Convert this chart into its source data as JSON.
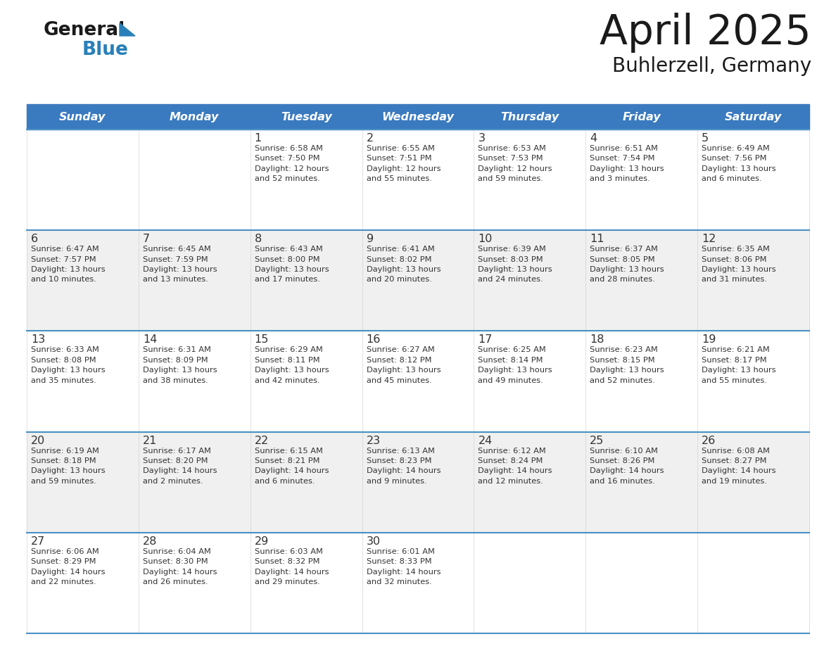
{
  "title": "April 2025",
  "subtitle": "Buhlerzell, Germany",
  "header_bg": "#3a7abf",
  "header_text_color": "#ffffff",
  "cell_bg_white": "#ffffff",
  "cell_bg_gray": "#f0f0f0",
  "row_line_color": "#4a90c4",
  "text_color": "#333333",
  "day_names": [
    "Sunday",
    "Monday",
    "Tuesday",
    "Wednesday",
    "Thursday",
    "Friday",
    "Saturday"
  ],
  "weeks": [
    [
      {
        "day": "",
        "info": ""
      },
      {
        "day": "",
        "info": ""
      },
      {
        "day": "1",
        "info": "Sunrise: 6:58 AM\nSunset: 7:50 PM\nDaylight: 12 hours\nand 52 minutes."
      },
      {
        "day": "2",
        "info": "Sunrise: 6:55 AM\nSunset: 7:51 PM\nDaylight: 12 hours\nand 55 minutes."
      },
      {
        "day": "3",
        "info": "Sunrise: 6:53 AM\nSunset: 7:53 PM\nDaylight: 12 hours\nand 59 minutes."
      },
      {
        "day": "4",
        "info": "Sunrise: 6:51 AM\nSunset: 7:54 PM\nDaylight: 13 hours\nand 3 minutes."
      },
      {
        "day": "5",
        "info": "Sunrise: 6:49 AM\nSunset: 7:56 PM\nDaylight: 13 hours\nand 6 minutes."
      }
    ],
    [
      {
        "day": "6",
        "info": "Sunrise: 6:47 AM\nSunset: 7:57 PM\nDaylight: 13 hours\nand 10 minutes."
      },
      {
        "day": "7",
        "info": "Sunrise: 6:45 AM\nSunset: 7:59 PM\nDaylight: 13 hours\nand 13 minutes."
      },
      {
        "day": "8",
        "info": "Sunrise: 6:43 AM\nSunset: 8:00 PM\nDaylight: 13 hours\nand 17 minutes."
      },
      {
        "day": "9",
        "info": "Sunrise: 6:41 AM\nSunset: 8:02 PM\nDaylight: 13 hours\nand 20 minutes."
      },
      {
        "day": "10",
        "info": "Sunrise: 6:39 AM\nSunset: 8:03 PM\nDaylight: 13 hours\nand 24 minutes."
      },
      {
        "day": "11",
        "info": "Sunrise: 6:37 AM\nSunset: 8:05 PM\nDaylight: 13 hours\nand 28 minutes."
      },
      {
        "day": "12",
        "info": "Sunrise: 6:35 AM\nSunset: 8:06 PM\nDaylight: 13 hours\nand 31 minutes."
      }
    ],
    [
      {
        "day": "13",
        "info": "Sunrise: 6:33 AM\nSunset: 8:08 PM\nDaylight: 13 hours\nand 35 minutes."
      },
      {
        "day": "14",
        "info": "Sunrise: 6:31 AM\nSunset: 8:09 PM\nDaylight: 13 hours\nand 38 minutes."
      },
      {
        "day": "15",
        "info": "Sunrise: 6:29 AM\nSunset: 8:11 PM\nDaylight: 13 hours\nand 42 minutes."
      },
      {
        "day": "16",
        "info": "Sunrise: 6:27 AM\nSunset: 8:12 PM\nDaylight: 13 hours\nand 45 minutes."
      },
      {
        "day": "17",
        "info": "Sunrise: 6:25 AM\nSunset: 8:14 PM\nDaylight: 13 hours\nand 49 minutes."
      },
      {
        "day": "18",
        "info": "Sunrise: 6:23 AM\nSunset: 8:15 PM\nDaylight: 13 hours\nand 52 minutes."
      },
      {
        "day": "19",
        "info": "Sunrise: 6:21 AM\nSunset: 8:17 PM\nDaylight: 13 hours\nand 55 minutes."
      }
    ],
    [
      {
        "day": "20",
        "info": "Sunrise: 6:19 AM\nSunset: 8:18 PM\nDaylight: 13 hours\nand 59 minutes."
      },
      {
        "day": "21",
        "info": "Sunrise: 6:17 AM\nSunset: 8:20 PM\nDaylight: 14 hours\nand 2 minutes."
      },
      {
        "day": "22",
        "info": "Sunrise: 6:15 AM\nSunset: 8:21 PM\nDaylight: 14 hours\nand 6 minutes."
      },
      {
        "day": "23",
        "info": "Sunrise: 6:13 AM\nSunset: 8:23 PM\nDaylight: 14 hours\nand 9 minutes."
      },
      {
        "day": "24",
        "info": "Sunrise: 6:12 AM\nSunset: 8:24 PM\nDaylight: 14 hours\nand 12 minutes."
      },
      {
        "day": "25",
        "info": "Sunrise: 6:10 AM\nSunset: 8:26 PM\nDaylight: 14 hours\nand 16 minutes."
      },
      {
        "day": "26",
        "info": "Sunrise: 6:08 AM\nSunset: 8:27 PM\nDaylight: 14 hours\nand 19 minutes."
      }
    ],
    [
      {
        "day": "27",
        "info": "Sunrise: 6:06 AM\nSunset: 8:29 PM\nDaylight: 14 hours\nand 22 minutes."
      },
      {
        "day": "28",
        "info": "Sunrise: 6:04 AM\nSunset: 8:30 PM\nDaylight: 14 hours\nand 26 minutes."
      },
      {
        "day": "29",
        "info": "Sunrise: 6:03 AM\nSunset: 8:32 PM\nDaylight: 14 hours\nand 29 minutes."
      },
      {
        "day": "30",
        "info": "Sunrise: 6:01 AM\nSunset: 8:33 PM\nDaylight: 14 hours\nand 32 minutes."
      },
      {
        "day": "",
        "info": ""
      },
      {
        "day": "",
        "info": ""
      },
      {
        "day": "",
        "info": ""
      }
    ]
  ]
}
